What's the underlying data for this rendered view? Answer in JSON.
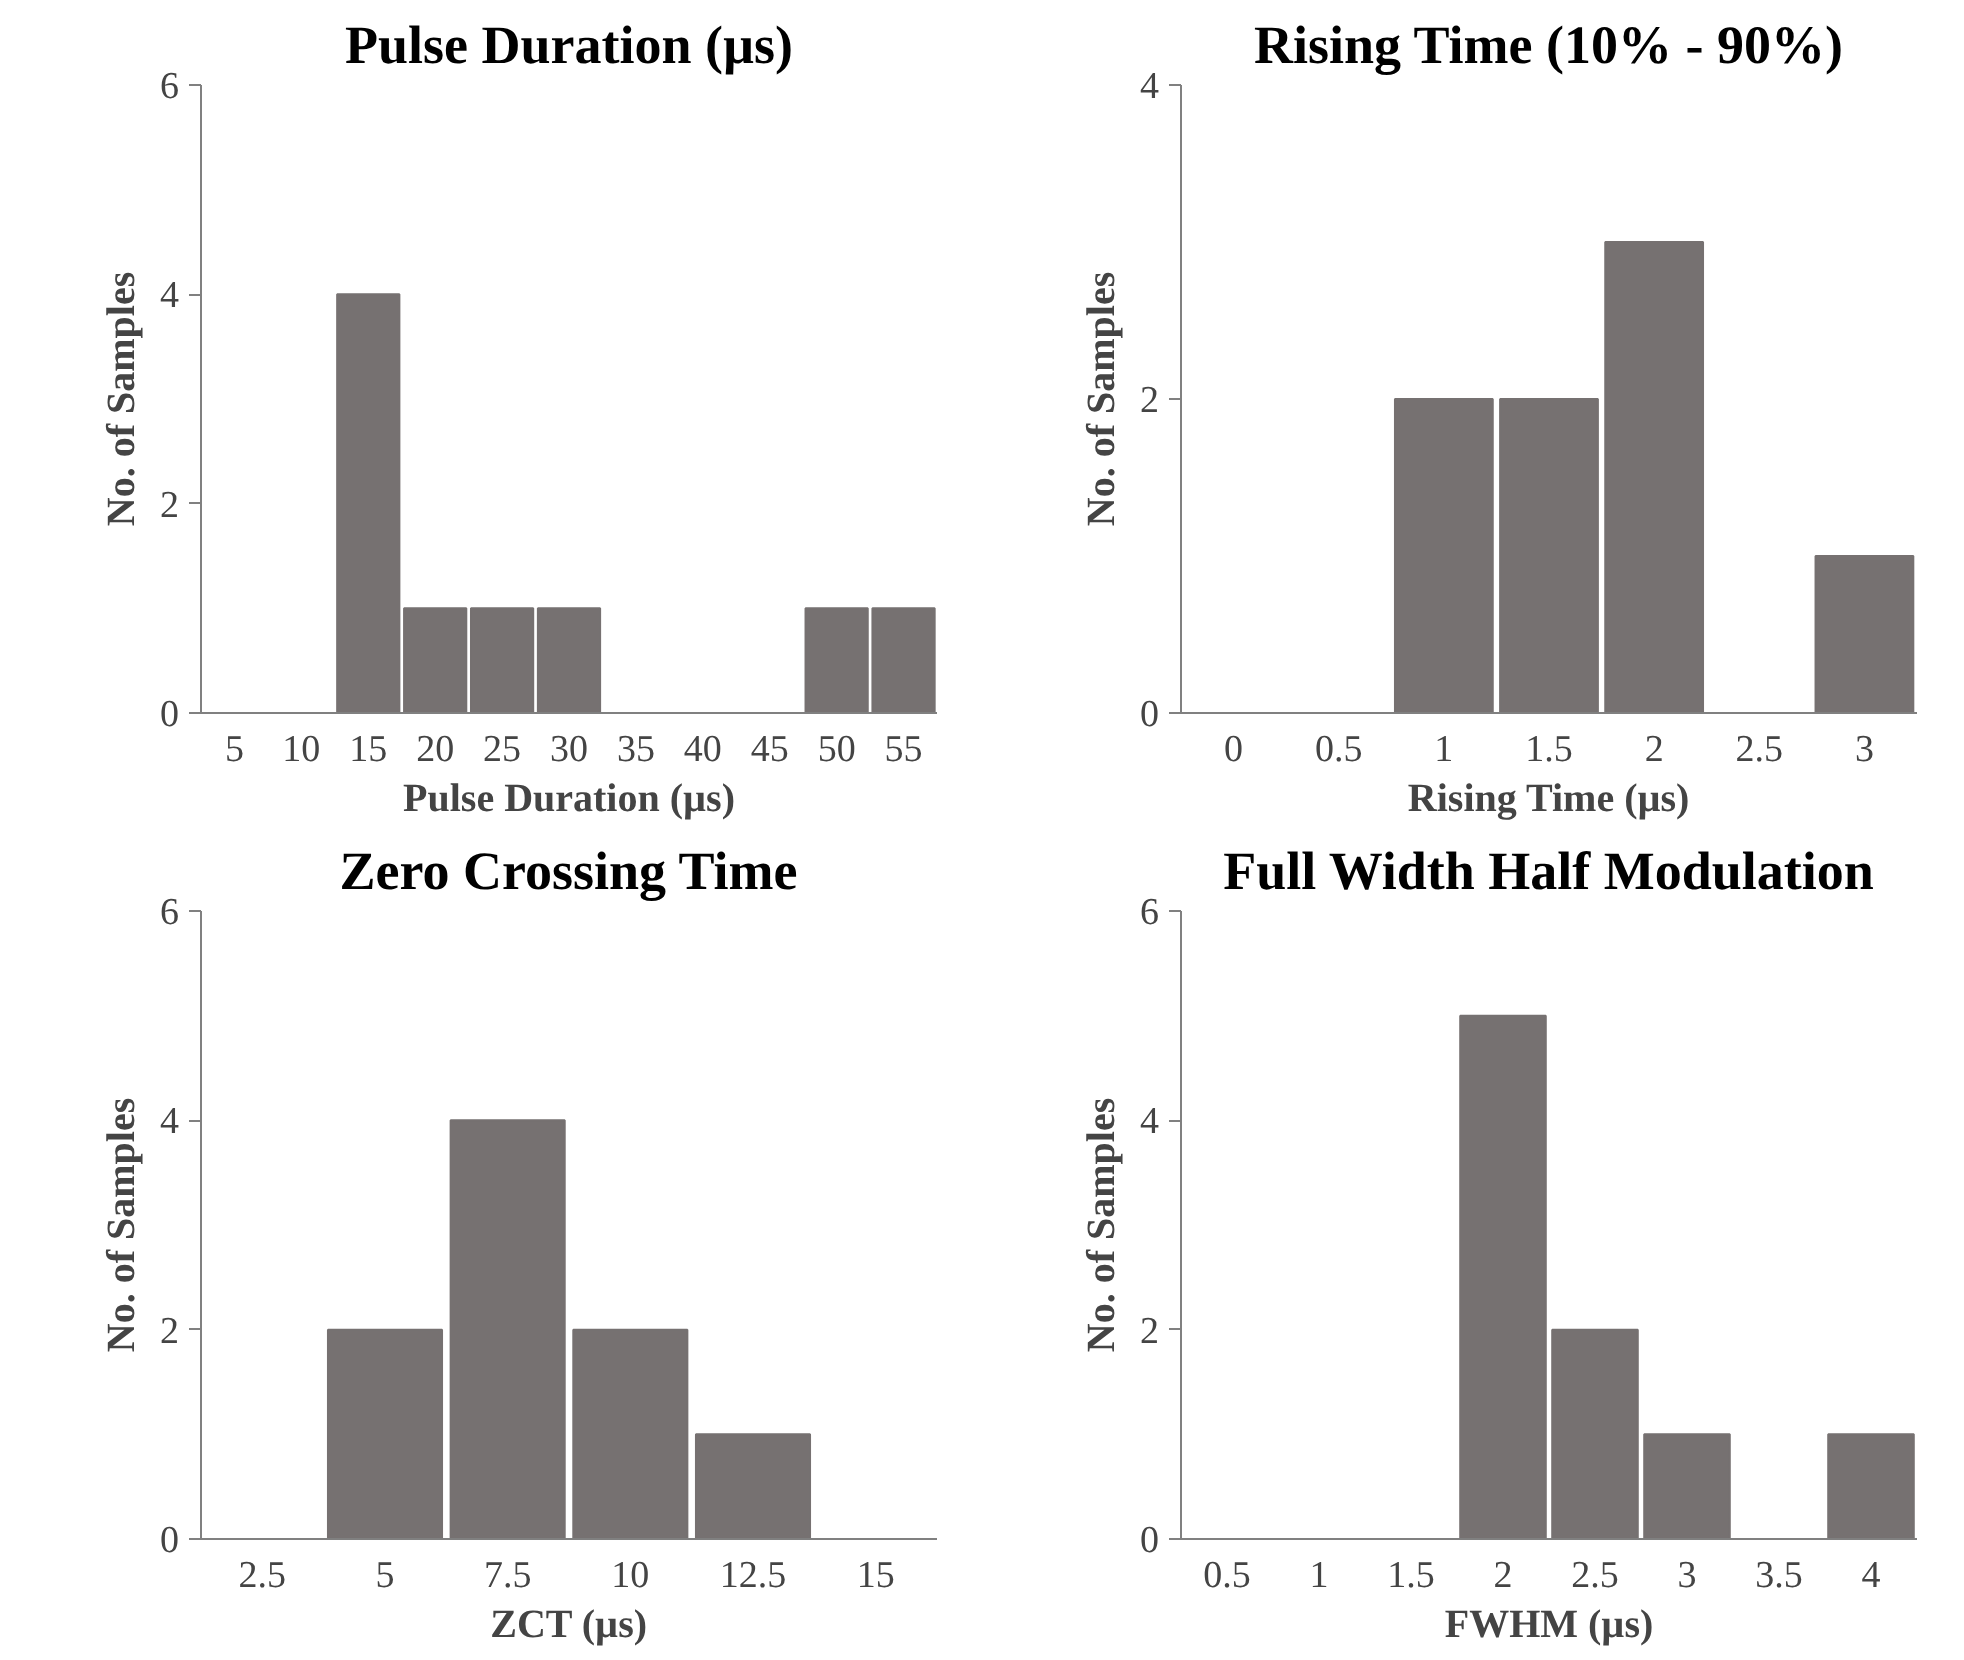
{
  "chart_data": [
    {
      "type": "bar",
      "title": "Pulse Duration (µs)",
      "xlabel": "Pulse Duration (µs)",
      "ylabel": "No. of Samples",
      "categories": [
        "5",
        "10",
        "15",
        "20",
        "25",
        "30",
        "35",
        "40",
        "45",
        "50",
        "55"
      ],
      "values": [
        0,
        0,
        4,
        1,
        1,
        1,
        0,
        0,
        0,
        1,
        1
      ],
      "color": "#767171",
      "ylim": [
        0,
        6
      ],
      "yticks": [
        0,
        2,
        4,
        6
      ],
      "grid": false,
      "legend": false
    },
    {
      "type": "bar",
      "title": "Rising Time (10% - 90%)",
      "xlabel": "Rising Time (µs)",
      "ylabel": "No. of Samples",
      "categories": [
        "0",
        "0.5",
        "1",
        "1.5",
        "2",
        "2.5",
        "3"
      ],
      "values": [
        0,
        0,
        2,
        2,
        3,
        0,
        1
      ],
      "color": "#767171",
      "ylim": [
        0,
        4
      ],
      "yticks": [
        0,
        2,
        4
      ],
      "grid": false,
      "legend": false
    },
    {
      "type": "bar",
      "title": "Zero Crossing Time",
      "xlabel": "ZCT (µs)",
      "ylabel": "No. of Samples",
      "categories": [
        "2.5",
        "5",
        "7.5",
        "10",
        "12.5",
        "15"
      ],
      "values": [
        0,
        2,
        4,
        2,
        1,
        0
      ],
      "color": "#767171",
      "ylim": [
        0,
        6
      ],
      "yticks": [
        0,
        2,
        4,
        6
      ],
      "grid": false,
      "legend": false
    },
    {
      "type": "bar",
      "title": "Full Width Half Modulation",
      "xlabel": "FWHM (µs)",
      "ylabel": "No. of Samples",
      "categories": [
        "0.5",
        "1",
        "1.5",
        "2",
        "2.5",
        "3",
        "3.5",
        "4"
      ],
      "values": [
        0,
        0,
        0,
        5,
        2,
        1,
        0,
        1
      ],
      "color": "#767171",
      "ylim": [
        0,
        6
      ],
      "yticks": [
        0,
        2,
        4,
        6
      ],
      "grid": false,
      "legend": false
    }
  ]
}
